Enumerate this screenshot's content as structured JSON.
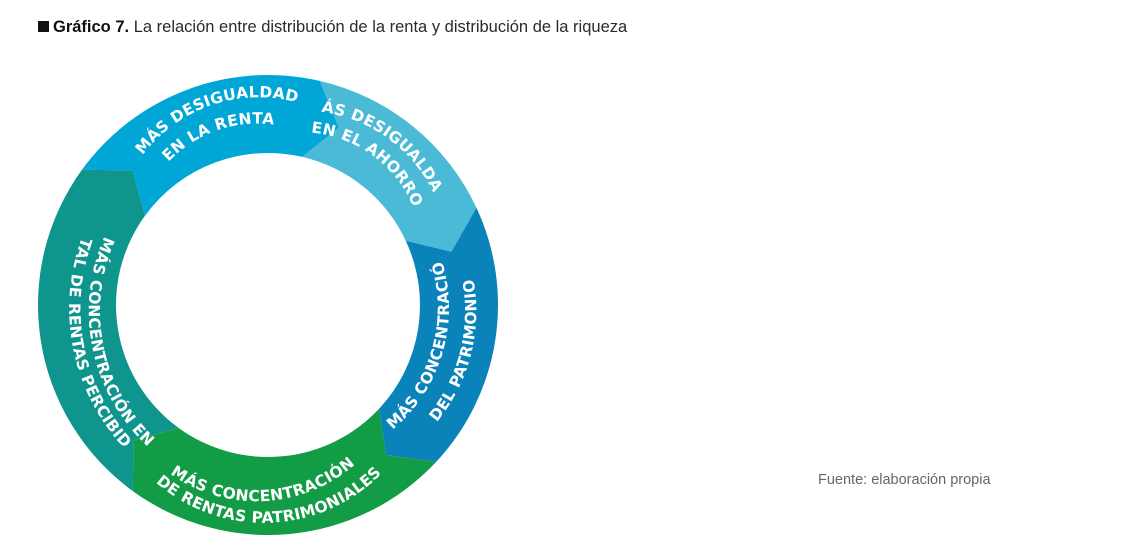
{
  "title": {
    "label": "Gráfico 7.",
    "text": "La relación entre distribución de la renta y distribución de la riqueza"
  },
  "cycle": {
    "segments": [
      {
        "lines": [
          "MÁS DESIGUALDAD",
          "EN LA RENTA"
        ],
        "color": "#00a6d6"
      },
      {
        "lines": [
          "MÁS DESIGUALDAD",
          "EN EL AHORRO"
        ],
        "color": "#4bbad6"
      },
      {
        "lines": [
          "MÁS CONCENTRACIÓN",
          "DEL PATRIMONIO"
        ],
        "color": "#0a82ba"
      },
      {
        "lines": [
          "MÁS CONCENTRACIÓN",
          "DE RENTAS PATRIMONIALES"
        ],
        "color": "#129c45"
      },
      {
        "lines": [
          "MÁS CONCENTRACIÓN EN",
          "TOTAL DE RENTAS PERCIBIDAS"
        ],
        "color": "#0e958e"
      }
    ]
  },
  "source": "Fuente: elaboración propia"
}
